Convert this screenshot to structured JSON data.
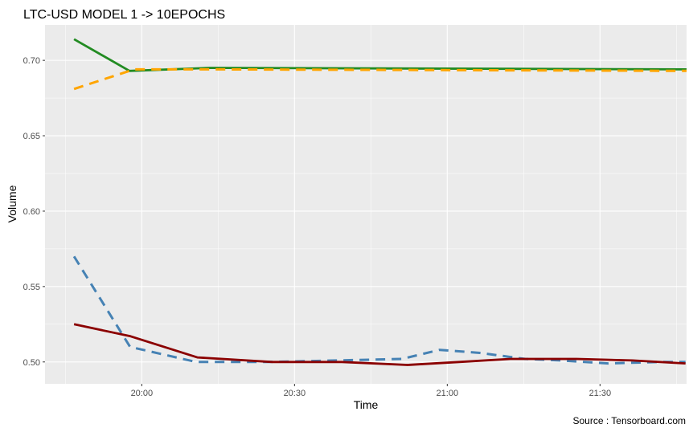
{
  "chart_data": {
    "type": "line",
    "title": "LTC-USD MODEL 1 -> 10EPOCHS",
    "xlabel": "Time",
    "ylabel": "Volume",
    "caption": "Source : Tensorboard.com",
    "x_ticks": [
      "20:00",
      "20:30",
      "21:00",
      "21:30"
    ],
    "x_tick_minutes": [
      0,
      30,
      60,
      90
    ],
    "y_ticks": [
      "0.50",
      "0.55",
      "0.60",
      "0.65",
      "0.70"
    ],
    "xlim_minutes": [
      -19,
      107
    ],
    "ylim": [
      0.4855,
      0.7235
    ],
    "grid": true,
    "legend": "none",
    "series": [
      {
        "color": "#228B22",
        "dash": "solid",
        "x_minutes": [
          -13.3,
          -2.4,
          13.4,
          107
        ],
        "values": [
          0.714,
          0.693,
          0.695,
          0.694
        ]
      },
      {
        "color": "#FFA500",
        "dash": "dashed",
        "x_minutes": [
          -13.3,
          -1.5,
          15,
          107
        ],
        "values": [
          0.681,
          0.694,
          0.694,
          0.693
        ]
      },
      {
        "color": "#4682B4",
        "dash": "dashed",
        "x_minutes": [
          -13.3,
          -2.3,
          10.7,
          24.9,
          38.4,
          51.1,
          58.5,
          66.4,
          75.3,
          82.4,
          91.6,
          101.7,
          106.8
        ],
        "values": [
          0.57,
          0.51,
          0.5,
          0.5,
          0.501,
          0.502,
          0.508,
          0.506,
          0.502,
          0.501,
          0.499,
          0.5,
          0.5
        ]
      },
      {
        "color": "#8B0000",
        "dash": "solid",
        "x_minutes": [
          -13.3,
          -2.2,
          10.9,
          25.6,
          39.3,
          52.2,
          62.3,
          72.4,
          85.4,
          96.4,
          106.8
        ],
        "values": [
          0.525,
          0.517,
          0.503,
          0.5,
          0.5,
          0.498,
          0.5,
          0.502,
          0.502,
          0.501,
          0.499
        ]
      }
    ]
  }
}
